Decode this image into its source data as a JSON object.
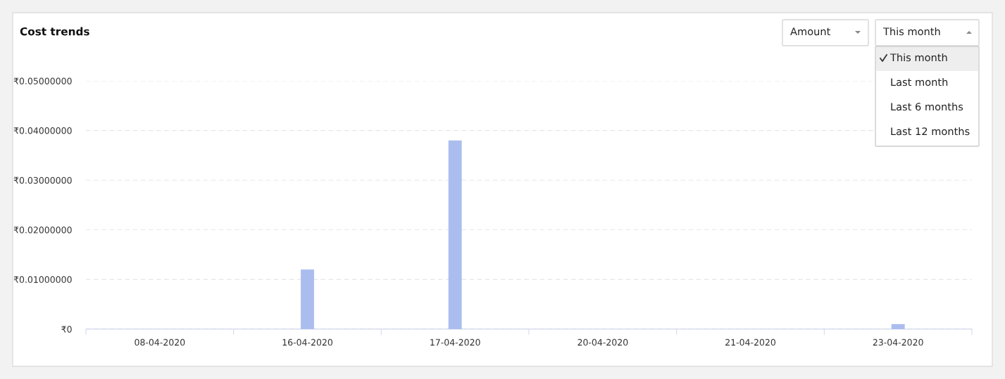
{
  "chart_data": {
    "type": "bar",
    "title": "Cost trends",
    "categories": [
      "08-04-2020",
      "16-04-2020",
      "17-04-2020",
      "20-04-2020",
      "21-04-2020",
      "23-04-2020"
    ],
    "values": [
      0,
      0.012,
      0.038,
      0,
      0,
      0.001
    ],
    "color": "#abbdee",
    "ylim": [
      0,
      0.05
    ],
    "yticks": [
      {
        "value": 0,
        "label": "₹0"
      },
      {
        "value": 0.01,
        "label": "₹0.01000000"
      },
      {
        "value": 0.02,
        "label": "₹0.02000000"
      },
      {
        "value": 0.03,
        "label": "₹0.03000000"
      },
      {
        "value": 0.04,
        "label": "₹0.04000000"
      },
      {
        "value": 0.05,
        "label": "₹0.05000000"
      }
    ],
    "grid": "y",
    "line_style": "dashed",
    "annotations": [
      "Amount",
      "This month",
      "This month",
      "Last month",
      "Last 6 months",
      "Last 12 months"
    ]
  }
}
